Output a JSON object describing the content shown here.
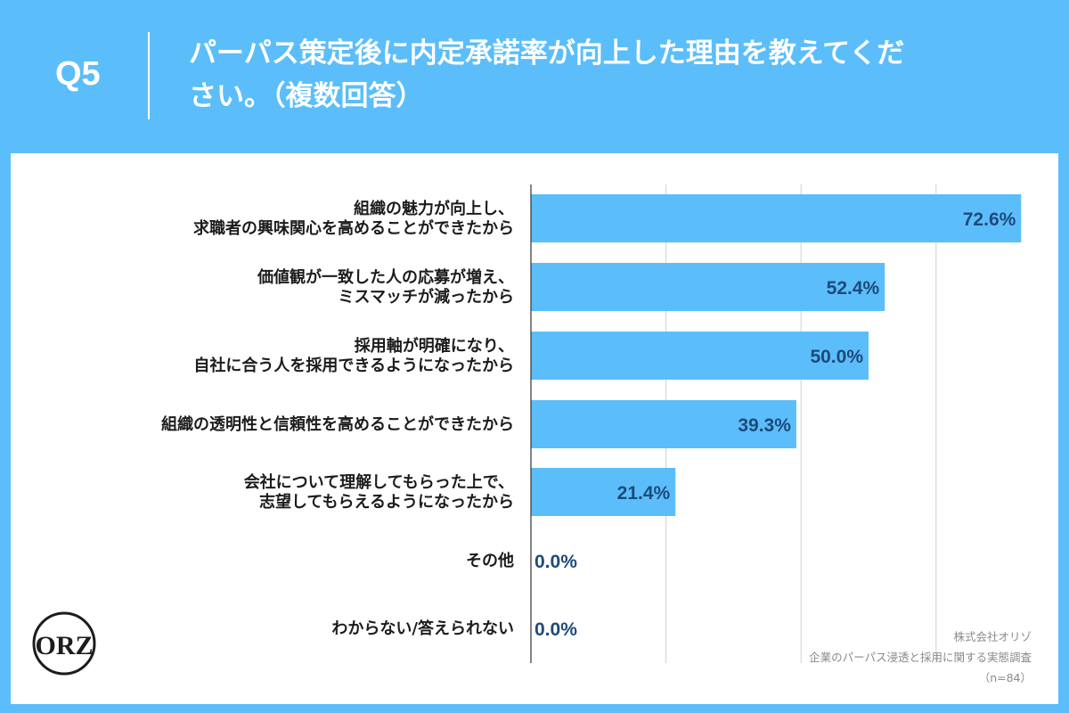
{
  "header": {
    "question_number": "Q5",
    "question_line1": "パーパス策定後に内定承諾率が向上した理由を教えてくだ",
    "question_line2": "さい。（複数回答）"
  },
  "chart_data": {
    "type": "bar",
    "orientation": "horizontal",
    "categories": [
      [
        "組織の魅力が向上し、",
        "求職者の興味関心を高めることができたから"
      ],
      [
        "価値観が一致した人の応募が増え、",
        "ミスマッチが減ったから"
      ],
      [
        "採用軸が明確になり、",
        "自社に合う人を採用できるようになったから"
      ],
      [
        "組織の透明性と信頼性を高めることができたから"
      ],
      [
        "会社について理解してもらった上で、",
        "志望してもらえるようになったから"
      ],
      [
        "その他"
      ],
      [
        "わからない/答えられない"
      ]
    ],
    "values": [
      72.6,
      52.4,
      50.0,
      39.3,
      21.4,
      0.0,
      0.0
    ],
    "value_labels": [
      "72.6%",
      "52.4%",
      "50.0%",
      "39.3%",
      "21.4%",
      "0.0%",
      "0.0%"
    ],
    "xlim": [
      0,
      80
    ],
    "x_gridlines": [
      20,
      40,
      60
    ],
    "grid": true,
    "bar_color": "#5bbefa",
    "value_label_color": "#1d4a7a"
  },
  "footer": {
    "company": "株式会社オリゾ",
    "survey": "企業のパーパス浸透と採用に関する実態調査",
    "sample": "（n=84）"
  },
  "logo": {
    "text": "ORZ"
  }
}
